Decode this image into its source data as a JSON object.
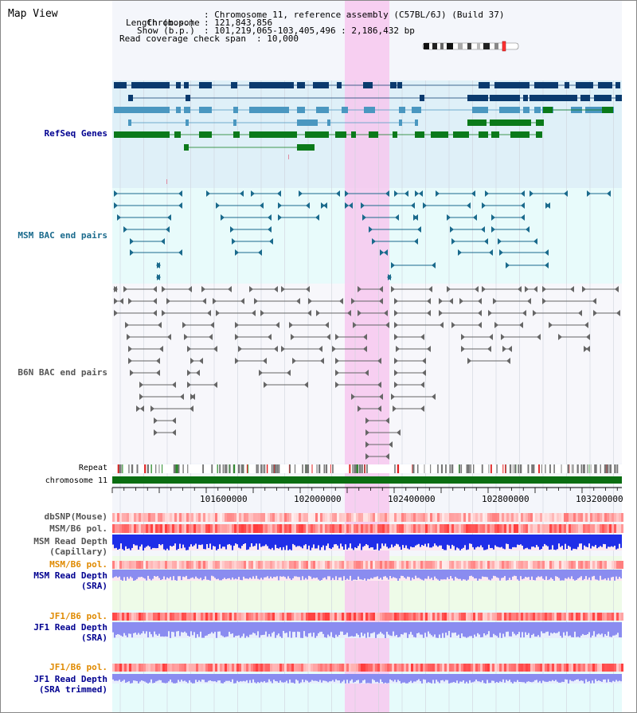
{
  "title": "Map View",
  "info": {
    "chromosome_key": "Chromosome",
    "chromosome_val": ": Chromosome 11, reference assembly (C57BL/6J) (Build 37)",
    "length_key": "Length (b.p.)",
    "length_val": ": 121,843,856",
    "show_key": "Show (b.p.)",
    "show_val": ": 101,219,065-103,405,496 : 2,186,432 bp",
    "coverage_key": "Read coverage check span",
    "coverage_val": ": 10,000"
  },
  "tracks": {
    "refseq": "RefSeq Genes",
    "msm_bac": "MSM BAC end pairs",
    "b6n_bac": "B6N BAC end pairs",
    "repeat": "Repeat",
    "chromosome": "chromosome 11",
    "dbsnp": "dbSNP(Mouse)",
    "msm_pol": "MSM/B6 pol.",
    "msm_depth_cap_1": "MSM Read Depth",
    "msm_depth_cap_2": "(Capillary)",
    "msm_pol_sra": "MSM/B6 pol.",
    "msm_depth_sra_1": "MSM Read Depth",
    "msm_depth_sra_2": "(SRA)",
    "jf1_pol": "JF1/B6 pol.",
    "jf1_depth_1": "JF1 Read Depth",
    "jf1_depth_2": "(SRA)",
    "jf1_pol_2": "JF1/B6 pol.",
    "jf1_trim_1": "JF1 Read Depth",
    "jf1_trim_2": "(SRA trimmed)"
  },
  "axis_ticks": [
    "101600000",
    "102000000",
    "102400000",
    "102800000",
    "103200000"
  ],
  "colors": {
    "refseq_bg": "#dff0f8",
    "msm_bg": "#e8fbfb",
    "gene_dark": "#0a3a6e",
    "gene_mid": "#4a97c0",
    "gene_green": "#0b7a1a",
    "msm_pair": "#1a6a8c",
    "b6n_pair": "#666666",
    "highlight": "#f7c8ee",
    "chrom_bar": "#0b6e12",
    "label_blue": "#000090",
    "label_orange": "#e08a00"
  }
}
